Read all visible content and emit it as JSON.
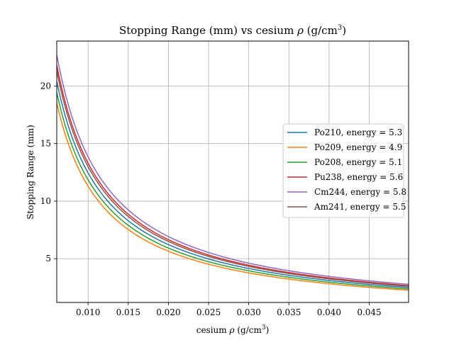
{
  "chart_data": {
    "type": "line",
    "title_main": "Stopping Range (mm) vs cesium ",
    "title_sym": "ρ",
    "title_unit_pre": " (g/cm",
    "title_unit_sup": "3",
    "title_unit_post": ")",
    "xlabel_main": "cesium ",
    "xlabel_sym": "ρ",
    "xlabel_unit_pre": " (g/cm",
    "xlabel_unit_sup": "3",
    "xlabel_unit_post": ")",
    "ylabel": "Stopping Range (mm)",
    "xlim": [
      0.0061,
      0.0499
    ],
    "ylim": [
      1.2,
      23.9
    ],
    "grid": true,
    "legend_placement": "center-right",
    "x_ticks": [
      0.01,
      0.015,
      0.02,
      0.025,
      0.03,
      0.035,
      0.04,
      0.045
    ],
    "x_tick_labels": [
      "0.010",
      "0.015",
      "0.020",
      "0.025",
      "0.030",
      "0.035",
      "0.040",
      "0.045"
    ],
    "y_ticks": [
      5,
      10,
      15,
      20
    ],
    "y_tick_labels": [
      "5",
      "10",
      "15",
      "20"
    ],
    "x_range": [
      0.0061,
      0.0499
    ],
    "curve_form": "y = k / x",
    "series": [
      {
        "name": "Po210, energy = 5.3",
        "k": 0.1245,
        "color": "#1f77b4"
      },
      {
        "name": "Po209, energy = 4.9",
        "k": 0.113,
        "color": "#ff7f0e"
      },
      {
        "name": "Po208, energy = 5.1",
        "k": 0.1185,
        "color": "#2ca02c"
      },
      {
        "name": "Pu238, energy = 5.6",
        "k": 0.133,
        "color": "#d62728"
      },
      {
        "name": "Cm244, energy = 5.8",
        "k": 0.1385,
        "color": "#9467bd"
      },
      {
        "name": "Am241, energy = 5.5",
        "k": 0.13,
        "color": "#8c564b"
      }
    ]
  }
}
